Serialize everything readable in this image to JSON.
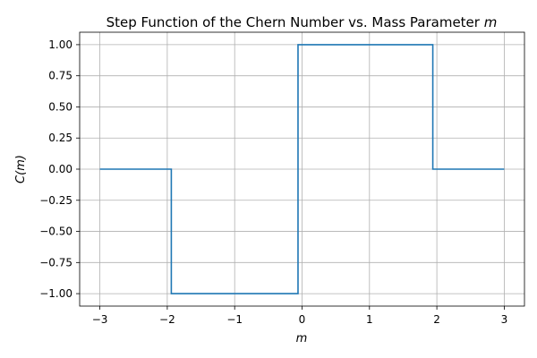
{
  "chart_data": {
    "type": "line",
    "title": "Step Function of the Chern Number vs. Mass Parameter",
    "title_variable": "m",
    "xlabel": "m",
    "ylabel": "C(m)",
    "xlim": [
      -3.3,
      3.3
    ],
    "ylim": [
      -1.1,
      1.1
    ],
    "x_ticks": [
      -3,
      -2,
      -1,
      0,
      1,
      2,
      3
    ],
    "x_tick_labels": [
      "−3",
      "−2",
      "−1",
      "0",
      "1",
      "2",
      "3"
    ],
    "y_ticks": [
      -1.0,
      -0.75,
      -0.5,
      -0.25,
      0.0,
      0.25,
      0.5,
      0.75,
      1.0
    ],
    "y_tick_labels": [
      "−1.00",
      "−0.75",
      "−0.50",
      "−0.25",
      "0.00",
      "0.25",
      "0.50",
      "0.75",
      "1.00"
    ],
    "grid": true,
    "line_color": "#1f77b4",
    "series": [
      {
        "x": [
          -3.0,
          -1.94,
          -1.94,
          -0.06,
          -0.06,
          1.94,
          1.94,
          3.0
        ],
        "y": [
          0,
          0,
          -1,
          -1,
          1,
          1,
          0,
          0
        ]
      }
    ]
  }
}
